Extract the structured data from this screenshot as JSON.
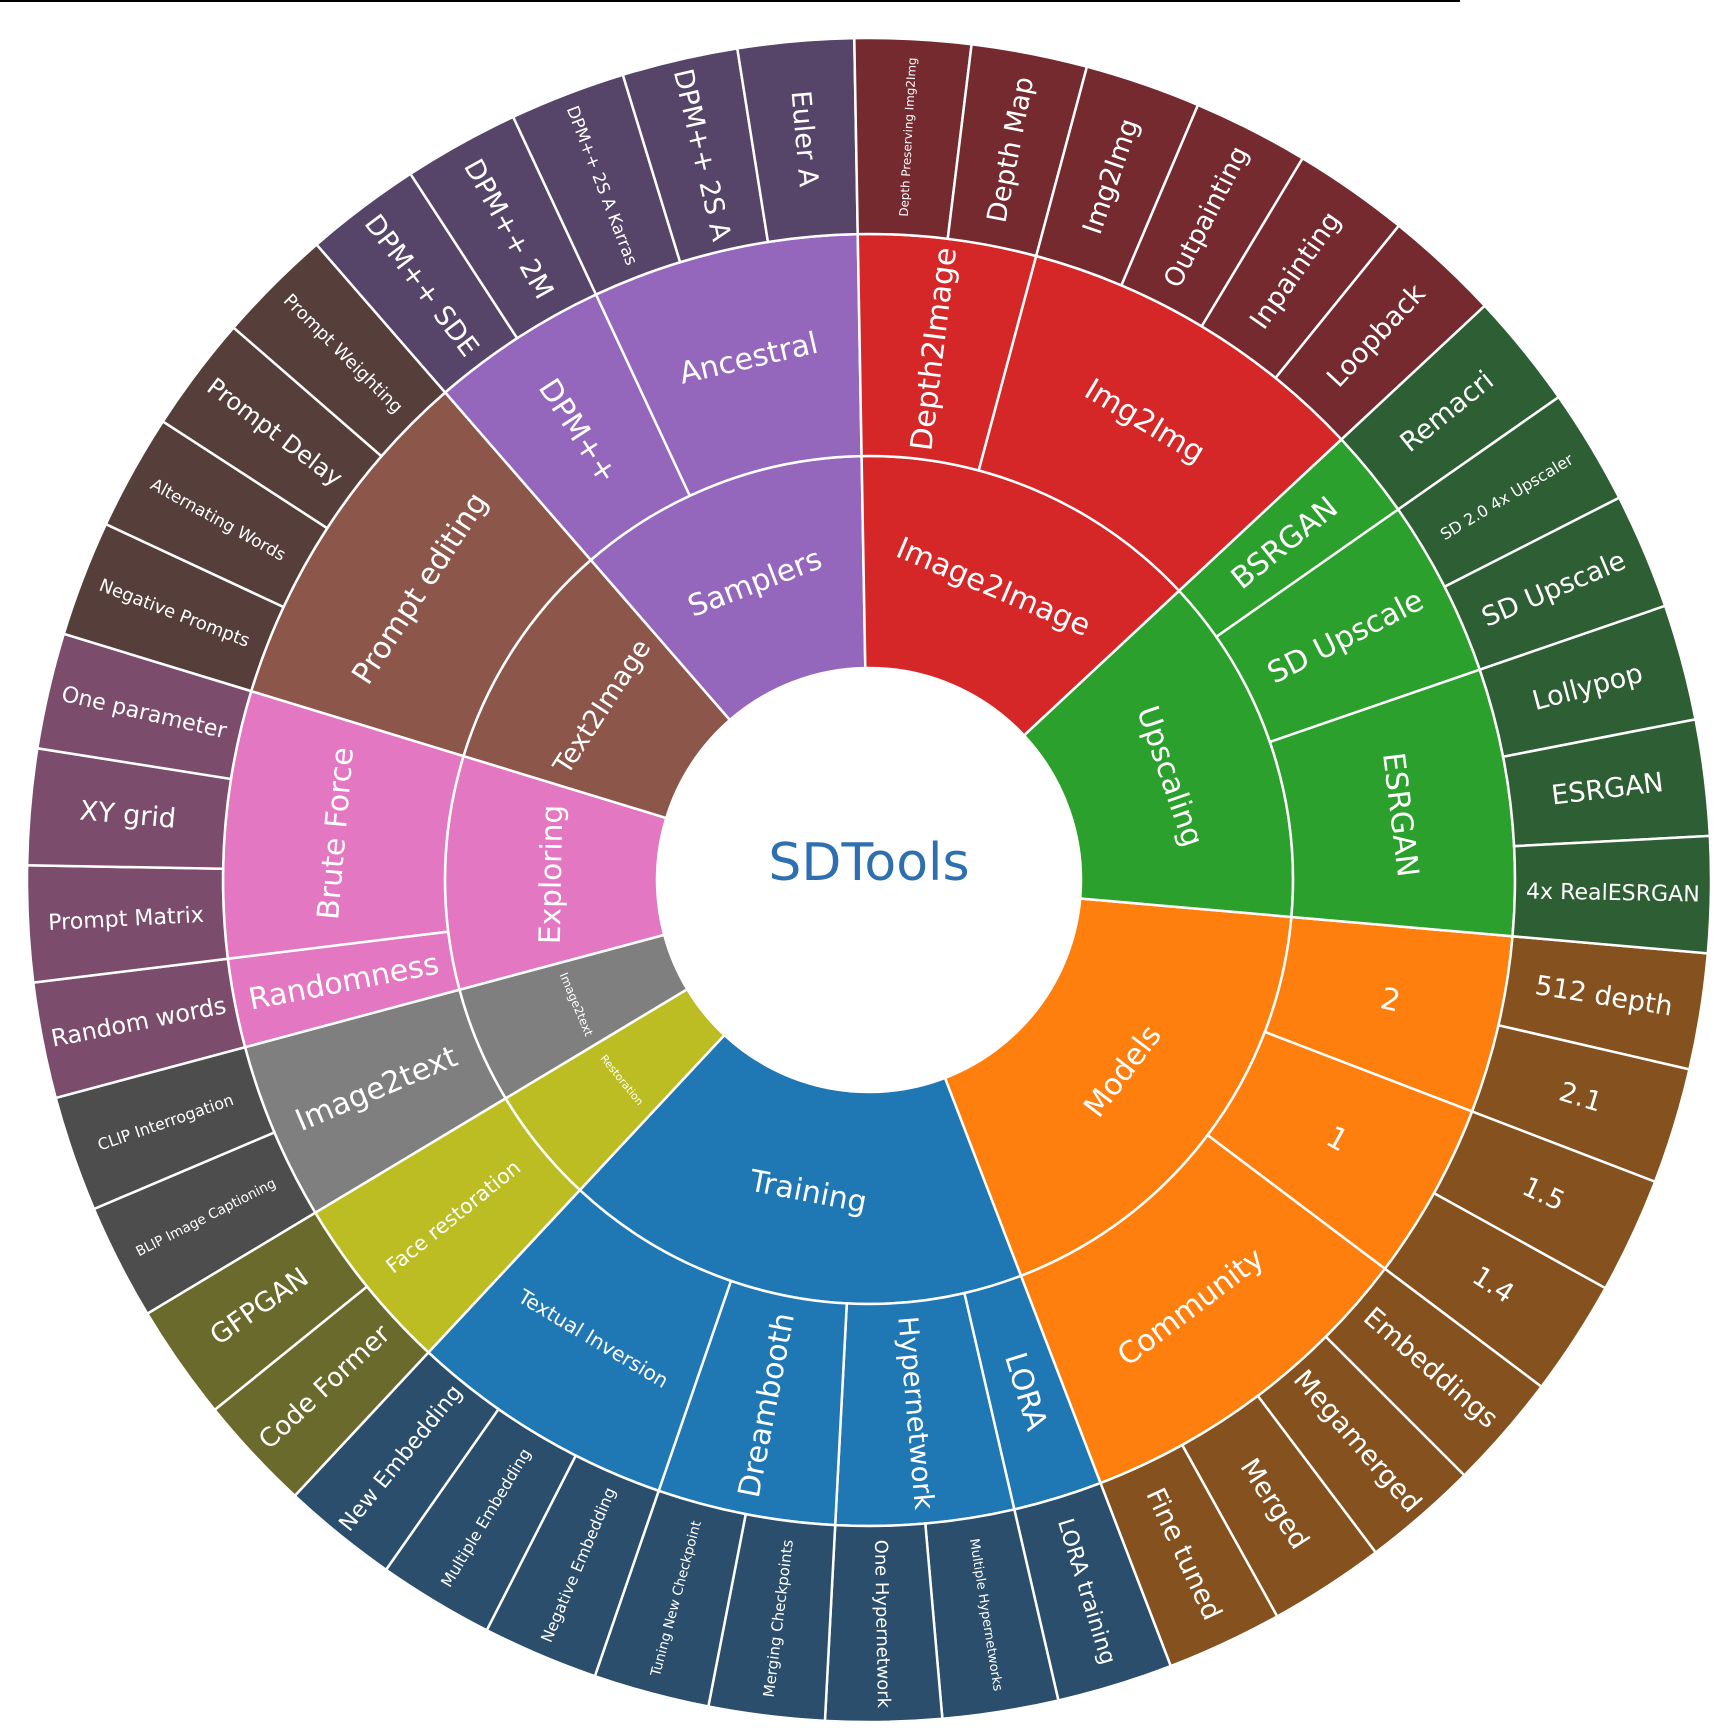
{
  "colors": {
    "Models": "#ff7f0e",
    "Training": "#1f77b4",
    "Restoration": "#bcbd22",
    "Image2text": "#7f7f7f",
    "Exploring": "#e377c2",
    "Text2Image": "#8c564b",
    "Samplers": "#9467bd",
    "Image2Image": "#d62728",
    "Upscaling": "#2ca02c",
    "Models_leaf": "#85521f",
    "Training_leaf": "#2a4e6b",
    "Restoration_leaf": "#6b6a2d",
    "Image2text_leaf": "#4d4d4d",
    "Exploring_leaf": "#7b4c6c",
    "Text2Image_leaf": "#563f3a",
    "Samplers_leaf": "#574569",
    "Image2Image_leaf": "#742a2f",
    "Upscaling_leaf": "#2e5e33"
  },
  "chart_data": {
    "type": "sunburst",
    "root": "SDTools",
    "tree": [
      {
        "name": "Models",
        "color_key": "Models",
        "children": [
          {
            "name": "2",
            "children": [
              {
                "name": "512 depth"
              },
              {
                "name": "2.1"
              }
            ]
          },
          {
            "name": "1",
            "children": [
              {
                "name": "1.5"
              },
              {
                "name": "1.4"
              }
            ]
          },
          {
            "name": "Community",
            "children": [
              {
                "name": "Embeddings"
              },
              {
                "name": "Megamerged"
              },
              {
                "name": "Merged"
              },
              {
                "name": "Fine tuned"
              }
            ]
          }
        ]
      },
      {
        "name": "Training",
        "color_key": "Training",
        "children": [
          {
            "name": "LORA",
            "children": [
              {
                "name": "LORA training"
              }
            ]
          },
          {
            "name": "Hypernetwork",
            "children": [
              {
                "name": "Multiple Hypernetworks"
              },
              {
                "name": "One Hypernetwork"
              }
            ]
          },
          {
            "name": "Dreambooth",
            "children": [
              {
                "name": "Merging Checkpoints"
              },
              {
                "name": "Tuning New Checkpoint"
              }
            ]
          },
          {
            "name": "Textual Inversion",
            "children": [
              {
                "name": "Negative Embedding"
              },
              {
                "name": "Multiple Embedding"
              },
              {
                "name": "New Embedding"
              }
            ]
          }
        ]
      },
      {
        "name": "Restoration",
        "color_key": "Restoration",
        "children": [
          {
            "name": "Face restoration",
            "children": [
              {
                "name": "Code Former"
              },
              {
                "name": "GFPGAN"
              }
            ]
          }
        ]
      },
      {
        "name": "Image2text",
        "color_key": "Image2text",
        "children": [
          {
            "name": "Image2text",
            "children": [
              {
                "name": "BLIP Image Captioning"
              },
              {
                "name": "CLIP Interrogation"
              }
            ]
          }
        ]
      },
      {
        "name": "Exploring",
        "color_key": "Exploring",
        "children": [
          {
            "name": "Randomness",
            "children": [
              {
                "name": "Random words"
              }
            ]
          },
          {
            "name": "Brute Force",
            "children": [
              {
                "name": "Prompt Matrix"
              },
              {
                "name": "XY grid"
              },
              {
                "name": "One parameter"
              }
            ]
          }
        ]
      },
      {
        "name": "Text2Image",
        "color_key": "Text2Image",
        "children": [
          {
            "name": "Prompt editing",
            "children": [
              {
                "name": "Negative Prompts"
              },
              {
                "name": "Alternating Words"
              },
              {
                "name": "Prompt Delay"
              },
              {
                "name": "Prompt Weighting"
              }
            ]
          }
        ]
      },
      {
        "name": "Samplers",
        "color_key": "Samplers",
        "children": [
          {
            "name": "DPM++",
            "children": [
              {
                "name": "DPM++ SDE"
              },
              {
                "name": "DPM++ 2M"
              }
            ]
          },
          {
            "name": "Ancestral",
            "children": [
              {
                "name": "DPM++ 2S A Karras"
              },
              {
                "name": "DPM++ 2S A"
              },
              {
                "name": "Euler A"
              }
            ]
          }
        ]
      },
      {
        "name": "Image2Image",
        "color_key": "Image2Image",
        "children": [
          {
            "name": "Depth2Image",
            "children": [
              {
                "name": "Depth Preserving Img2Img"
              },
              {
                "name": "Depth Map"
              }
            ]
          },
          {
            "name": "Img2Img",
            "children": [
              {
                "name": "Img2Img"
              },
              {
                "name": "Outpainting"
              },
              {
                "name": "Inpainting"
              },
              {
                "name": "Loopback"
              }
            ]
          }
        ]
      },
      {
        "name": "Upscaling",
        "color_key": "Upscaling",
        "children": [
          {
            "name": "BSRGAN",
            "children": [
              {
                "name": "Remacri"
              }
            ]
          },
          {
            "name": "SD Upscale",
            "children": [
              {
                "name": "SD 2.0 4x Upscaler"
              },
              {
                "name": "SD Upscale"
              }
            ]
          },
          {
            "name": "ESRGAN",
            "children": [
              {
                "name": "Lollypop"
              },
              {
                "name": "ESRGAN"
              },
              {
                "name": "4x RealESRGAN"
              }
            ]
          }
        ]
      }
    ]
  }
}
